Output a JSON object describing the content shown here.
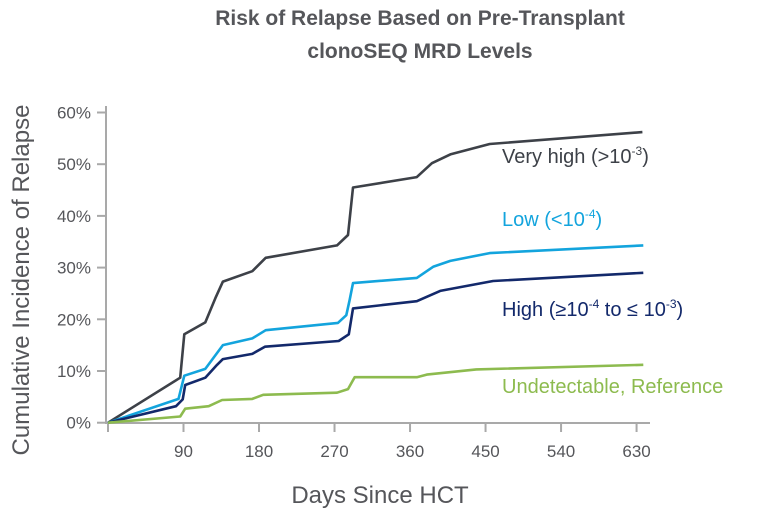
{
  "chart_data": {
    "type": "line",
    "title_lines": [
      "Risk of Relapse Based on Pre-Transplant",
      "clonoSEQ MRD Levels"
    ],
    "xlabel": "Days Since HCT",
    "ylabel": "Cumulative Incidence of Relapse",
    "xlim": [
      0,
      650
    ],
    "ylim": [
      0,
      60
    ],
    "xticks": [
      90,
      180,
      270,
      360,
      450,
      540,
      630
    ],
    "yticks": [
      0,
      10,
      20,
      30,
      40,
      50,
      60
    ],
    "ytick_labels": [
      "0%",
      "10%",
      "20%",
      "30%",
      "40%",
      "50%",
      "60%"
    ],
    "grid": false,
    "legend_placement": "inline labels at right",
    "series": [
      {
        "name": "Very high (>10-3)",
        "color": "#3d4148",
        "label_parts": [
          {
            "t": "Very high (>10"
          },
          {
            "sup": "-3"
          },
          {
            "t": ")"
          }
        ],
        "points": [
          [
            0,
            0
          ],
          [
            86,
            8.7
          ],
          [
            91,
            17.1
          ],
          [
            116,
            19.4
          ],
          [
            128,
            24.1
          ],
          [
            137,
            27.3
          ],
          [
            172,
            29.3
          ],
          [
            188,
            31.9
          ],
          [
            273,
            34.3
          ],
          [
            286,
            36.3
          ],
          [
            292,
            45.5
          ],
          [
            368,
            47.5
          ],
          [
            386,
            50.2
          ],
          [
            408,
            51.9
          ],
          [
            455,
            53.9
          ],
          [
            637,
            56.2
          ]
        ]
      },
      {
        "name": "Low (<10-4)",
        "color": "#13a4dd",
        "label_parts": [
          {
            "t": "Low (<10"
          },
          {
            "sup": "-4"
          },
          {
            "t": ")"
          }
        ],
        "points": [
          [
            0,
            0
          ],
          [
            84,
            4.6
          ],
          [
            91,
            9.1
          ],
          [
            116,
            10.4
          ],
          [
            137,
            15.0
          ],
          [
            172,
            16.3
          ],
          [
            188,
            17.9
          ],
          [
            274,
            19.3
          ],
          [
            284,
            20.8
          ],
          [
            288,
            23.7
          ],
          [
            292,
            27.0
          ],
          [
            368,
            28.0
          ],
          [
            388,
            30.2
          ],
          [
            408,
            31.3
          ],
          [
            455,
            32.8
          ],
          [
            638,
            34.3
          ]
        ]
      },
      {
        "name": "High (≥10-4 to ≤ 10-3)",
        "color": "#13296b",
        "label_parts": [
          {
            "t": "High (≥10"
          },
          {
            "sup": "-4"
          },
          {
            "t": " to ≤ 10"
          },
          {
            "sup": "-3"
          },
          {
            "t": ")"
          }
        ],
        "points": [
          [
            0,
            0
          ],
          [
            81,
            3.2
          ],
          [
            89,
            4.5
          ],
          [
            92,
            7.3
          ],
          [
            116,
            8.7
          ],
          [
            130,
            11.2
          ],
          [
            137,
            12.3
          ],
          [
            172,
            13.3
          ],
          [
            187,
            14.7
          ],
          [
            275,
            15.8
          ],
          [
            287,
            17.1
          ],
          [
            292,
            22.1
          ],
          [
            368,
            23.5
          ],
          [
            396,
            25.5
          ],
          [
            459,
            27.4
          ],
          [
            638,
            29.0
          ]
        ]
      },
      {
        "name": "Undetectable, Reference",
        "color": "#8dbb4f",
        "label_parts": [
          {
            "t": "Undetectable, Reference"
          }
        ],
        "points": [
          [
            0,
            0
          ],
          [
            86,
            1.2
          ],
          [
            92,
            2.7
          ],
          [
            120,
            3.2
          ],
          [
            136,
            4.4
          ],
          [
            172,
            4.6
          ],
          [
            185,
            5.4
          ],
          [
            273,
            5.8
          ],
          [
            286,
            6.5
          ],
          [
            294,
            8.8
          ],
          [
            368,
            8.8
          ],
          [
            380,
            9.3
          ],
          [
            439,
            10.3
          ],
          [
            638,
            11.2
          ]
        ]
      }
    ]
  }
}
